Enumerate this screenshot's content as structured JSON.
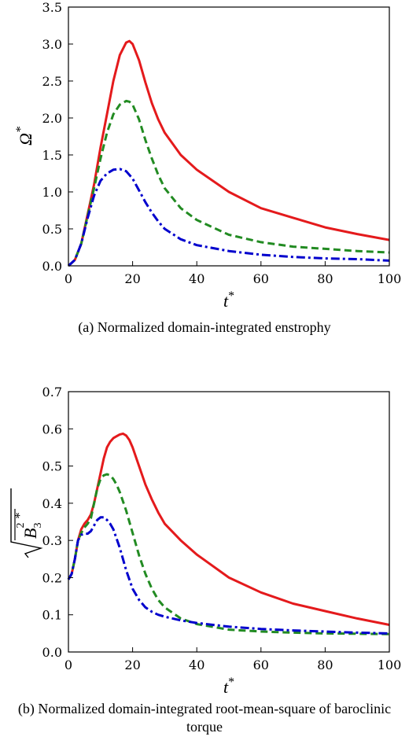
{
  "chart_data": [
    {
      "type": "line",
      "caption": "(a)  Normalized domain-integrated enstrophy",
      "xlabel": "t*",
      "ylabel": "Ω*",
      "xlim": [
        0,
        100
      ],
      "ylim": [
        0,
        3.5
      ],
      "xticks": [
        "0",
        "20",
        "40",
        "60",
        "80",
        "100"
      ],
      "yticks": [
        "0.0",
        "0.5",
        "1.0",
        "1.5",
        "2.0",
        "2.5",
        "3.0",
        "3.5"
      ],
      "grid": false,
      "series": [
        {
          "color": "#e41a1c",
          "linestyle": "solid",
          "x": [
            0,
            2,
            4,
            6,
            8,
            10,
            12,
            14,
            16,
            18,
            19,
            20,
            22,
            24,
            26,
            28,
            30,
            35,
            40,
            50,
            60,
            70,
            80,
            90,
            100
          ],
          "y": [
            0,
            0.08,
            0.3,
            0.7,
            1.1,
            1.6,
            2.05,
            2.5,
            2.85,
            3.02,
            3.04,
            3.0,
            2.78,
            2.48,
            2.2,
            1.98,
            1.8,
            1.5,
            1.3,
            1.0,
            0.78,
            0.65,
            0.52,
            0.43,
            0.35
          ]
        },
        {
          "color": "#228b22",
          "linestyle": "dashed",
          "x": [
            0,
            2,
            4,
            6,
            8,
            10,
            12,
            14,
            16,
            18,
            19,
            20,
            22,
            24,
            26,
            28,
            30,
            35,
            40,
            50,
            60,
            70,
            80,
            90,
            100
          ],
          "y": [
            0,
            0.08,
            0.3,
            0.68,
            1.05,
            1.45,
            1.8,
            2.05,
            2.18,
            2.23,
            2.22,
            2.18,
            1.98,
            1.7,
            1.45,
            1.23,
            1.05,
            0.78,
            0.62,
            0.42,
            0.32,
            0.26,
            0.23,
            0.2,
            0.18
          ]
        },
        {
          "color": "#0000cd",
          "linestyle": "dashdot",
          "x": [
            0,
            2,
            4,
            6,
            8,
            10,
            12,
            14,
            16,
            18,
            20,
            22,
            24,
            26,
            28,
            30,
            35,
            40,
            50,
            60,
            70,
            80,
            90,
            100
          ],
          "y": [
            0,
            0.08,
            0.3,
            0.65,
            0.95,
            1.15,
            1.25,
            1.3,
            1.31,
            1.28,
            1.18,
            1.02,
            0.86,
            0.72,
            0.6,
            0.5,
            0.36,
            0.28,
            0.2,
            0.15,
            0.12,
            0.1,
            0.09,
            0.07
          ]
        }
      ]
    },
    {
      "type": "line",
      "caption": "(b)  Normalized domain-integrated root-mean-square of baroclinic torque",
      "xlabel": "t*",
      "ylabel": "√(B₃²)*",
      "xlim": [
        0,
        100
      ],
      "ylim": [
        0,
        0.7
      ],
      "xticks": [
        "0",
        "20",
        "40",
        "60",
        "80",
        "100"
      ],
      "yticks": [
        "0.0",
        "0.1",
        "0.2",
        "0.3",
        "0.4",
        "0.5",
        "0.6",
        "0.7"
      ],
      "grid": false,
      "series": [
        {
          "color": "#e41a1c",
          "linestyle": "solid",
          "x": [
            0,
            1,
            2,
            3,
            4,
            5,
            6,
            7,
            8,
            9,
            10,
            11,
            12,
            13,
            14,
            15,
            16,
            17,
            18,
            19,
            20,
            22,
            24,
            26,
            28,
            30,
            35,
            40,
            50,
            60,
            70,
            80,
            90,
            100
          ],
          "y": [
            0.195,
            0.21,
            0.25,
            0.3,
            0.33,
            0.345,
            0.355,
            0.37,
            0.4,
            0.44,
            0.48,
            0.52,
            0.55,
            0.565,
            0.575,
            0.58,
            0.585,
            0.587,
            0.582,
            0.57,
            0.55,
            0.5,
            0.45,
            0.41,
            0.375,
            0.345,
            0.3,
            0.262,
            0.2,
            0.16,
            0.13,
            0.11,
            0.09,
            0.073
          ]
        },
        {
          "color": "#228b22",
          "linestyle": "dashed",
          "x": [
            0,
            1,
            2,
            3,
            4,
            5,
            6,
            7,
            8,
            9,
            10,
            11,
            12,
            13,
            14,
            15,
            16,
            18,
            20,
            22,
            24,
            26,
            28,
            30,
            35,
            40,
            50,
            60,
            70,
            80,
            90,
            100
          ],
          "y": [
            0.195,
            0.21,
            0.25,
            0.3,
            0.32,
            0.335,
            0.345,
            0.36,
            0.4,
            0.44,
            0.465,
            0.475,
            0.478,
            0.475,
            0.465,
            0.45,
            0.43,
            0.38,
            0.32,
            0.26,
            0.21,
            0.17,
            0.14,
            0.12,
            0.09,
            0.075,
            0.06,
            0.055,
            0.052,
            0.05,
            0.049,
            0.048
          ]
        },
        {
          "color": "#0000cd",
          "linestyle": "dashdot",
          "x": [
            0,
            1,
            2,
            3,
            4,
            5,
            6,
            7,
            8,
            9,
            10,
            11,
            12,
            13,
            14,
            16,
            18,
            20,
            22,
            24,
            26,
            28,
            30,
            35,
            40,
            50,
            60,
            70,
            80,
            90,
            100
          ],
          "y": [
            0.195,
            0.21,
            0.25,
            0.3,
            0.315,
            0.318,
            0.318,
            0.325,
            0.34,
            0.355,
            0.362,
            0.362,
            0.355,
            0.345,
            0.33,
            0.28,
            0.22,
            0.17,
            0.14,
            0.12,
            0.108,
            0.1,
            0.095,
            0.085,
            0.078,
            0.068,
            0.062,
            0.058,
            0.055,
            0.052,
            0.05
          ]
        }
      ]
    }
  ]
}
